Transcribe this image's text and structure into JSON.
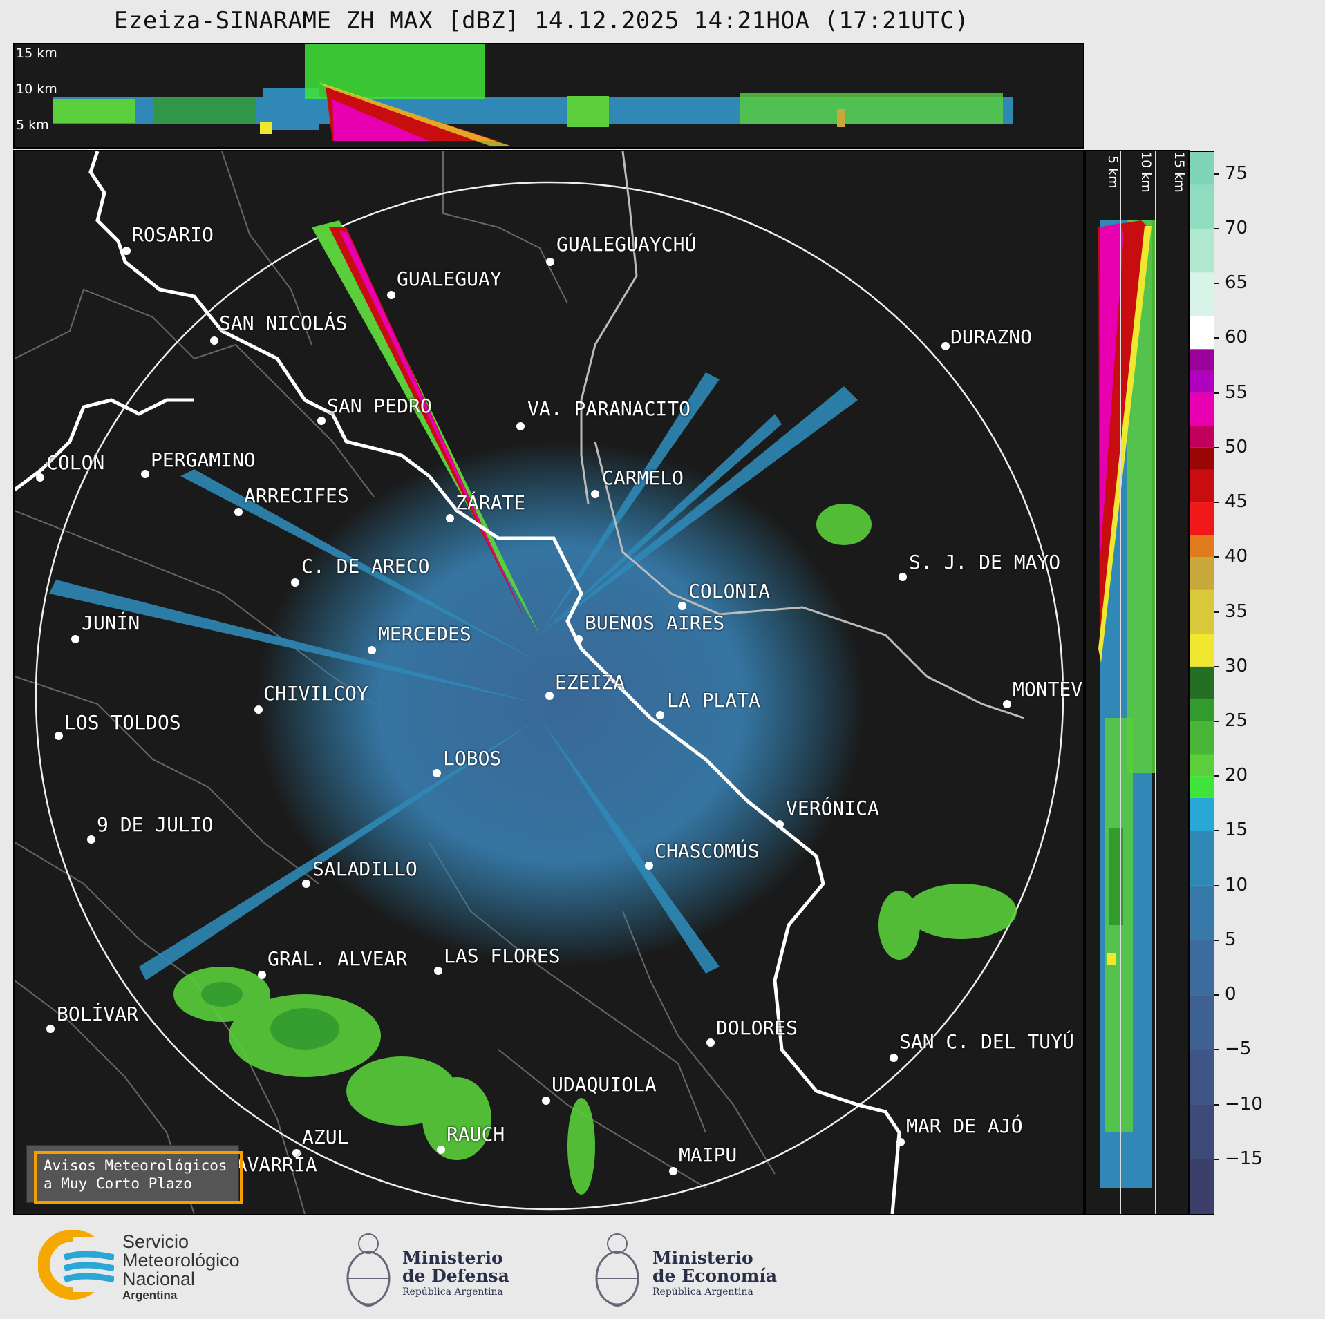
{
  "title": "Ezeiza-SINARAME ZH MAX [dBZ] 14.12.2025 14:21HOA (17:21UTC)",
  "top_panel": {
    "altitude_labels": [
      "15 km",
      "10 km",
      "5 km"
    ]
  },
  "side_panel": {
    "altitude_labels": [
      "5 km",
      "10 km",
      "15 km"
    ]
  },
  "colorbar": {
    "unit": "dBZ",
    "ticks": [
      "75",
      "70",
      "65",
      "60",
      "55",
      "50",
      "45",
      "40",
      "35",
      "30",
      "25",
      "20",
      "15",
      "10",
      "5",
      "0",
      "−5",
      "−10",
      "−15"
    ],
    "range": [
      -20,
      77
    ],
    "colors": [
      {
        "from": -20,
        "color": "#3b3f69"
      },
      {
        "from": -15,
        "color": "#3e4a78"
      },
      {
        "from": -10,
        "color": "#3f5586"
      },
      {
        "from": -5,
        "color": "#3e6192"
      },
      {
        "from": 0,
        "color": "#3b6c9d"
      },
      {
        "from": 5,
        "color": "#3779a8"
      },
      {
        "from": 10,
        "color": "#2f88b6"
      },
      {
        "from": 15,
        "color": "#29a7d5"
      },
      {
        "from": 18,
        "color": "#3fe43a"
      },
      {
        "from": 20,
        "color": "#5ace3b"
      },
      {
        "from": 22,
        "color": "#4bb53a"
      },
      {
        "from": 25,
        "color": "#339a2e"
      },
      {
        "from": 27,
        "color": "#246f22"
      },
      {
        "from": 30,
        "color": "#f0e830"
      },
      {
        "from": 33,
        "color": "#d8c83a"
      },
      {
        "from": 37,
        "color": "#c8a83a"
      },
      {
        "from": 40,
        "color": "#e07c1c"
      },
      {
        "from": 42,
        "color": "#f01818"
      },
      {
        "from": 45,
        "color": "#c80d10"
      },
      {
        "from": 48,
        "color": "#9a0505"
      },
      {
        "from": 50,
        "color": "#c0005a"
      },
      {
        "from": 52,
        "color": "#e800b0"
      },
      {
        "from": 55,
        "color": "#b000c0"
      },
      {
        "from": 57,
        "color": "#9a009a"
      },
      {
        "from": 59,
        "color": "#ffffff"
      },
      {
        "from": 62,
        "color": "#d8f4e8"
      },
      {
        "from": 66,
        "color": "#b0e8d0"
      },
      {
        "from": 70,
        "color": "#90dcc0"
      },
      {
        "from": 74,
        "color": "#80d4b8"
      }
    ]
  },
  "cities": [
    {
      "name": "ROSARIO"
    },
    {
      "name": "GUALEGUAYCHÚ"
    },
    {
      "name": "GUALEGUAY"
    },
    {
      "name": "SAN NICOLÁS"
    },
    {
      "name": "DURAZNO"
    },
    {
      "name": "SAN PEDRO"
    },
    {
      "name": "VA. PARANACITO"
    },
    {
      "name": "COLON"
    },
    {
      "name": "PERGAMINO"
    },
    {
      "name": "CARMELO"
    },
    {
      "name": "ARRECIFES"
    },
    {
      "name": "ZÁRATE"
    },
    {
      "name": "S. J. DE MAYO"
    },
    {
      "name": "C. DE ARECO"
    },
    {
      "name": "COLONIA"
    },
    {
      "name": "JUNÍN"
    },
    {
      "name": "BUENOS AIRES"
    },
    {
      "name": "MERCEDES"
    },
    {
      "name": "MONTEVIDEO"
    },
    {
      "name": "CHIVILCOY"
    },
    {
      "name": "EZEIZA"
    },
    {
      "name": "LA PLATA"
    },
    {
      "name": "LOS TOLDOS"
    },
    {
      "name": "LOBOS"
    },
    {
      "name": "VERÓNICA"
    },
    {
      "name": "9 DE JULIO"
    },
    {
      "name": "CHASCOMÚS"
    },
    {
      "name": "SALADILLO"
    },
    {
      "name": "GRAL. ALVEAR"
    },
    {
      "name": "LAS FLORES"
    },
    {
      "name": "BOLÍVAR"
    },
    {
      "name": "DOLORES"
    },
    {
      "name": "SAN C. DEL TUYÚ"
    },
    {
      "name": "UDAQUIOLA"
    },
    {
      "name": "MAR DE AJÓ"
    },
    {
      "name": "AZUL"
    },
    {
      "name": "RAUCH"
    },
    {
      "name": "OLAVARRÍA"
    },
    {
      "name": "MAIPU"
    }
  ],
  "avisos": {
    "line1": "Avisos Meteorológicos",
    "line2": "a Muy Corto Plazo"
  },
  "footer": {
    "smn": {
      "line1": "Servicio",
      "line2": "Meteorológico",
      "line3": "Nacional",
      "line4": "Argentina"
    },
    "defensa": {
      "line1": "Ministerio",
      "line2": "de Defensa",
      "line3": "República Argentina"
    },
    "economia": {
      "line1": "Ministerio",
      "line2": "de Economía",
      "line3": "República Argentina"
    }
  }
}
